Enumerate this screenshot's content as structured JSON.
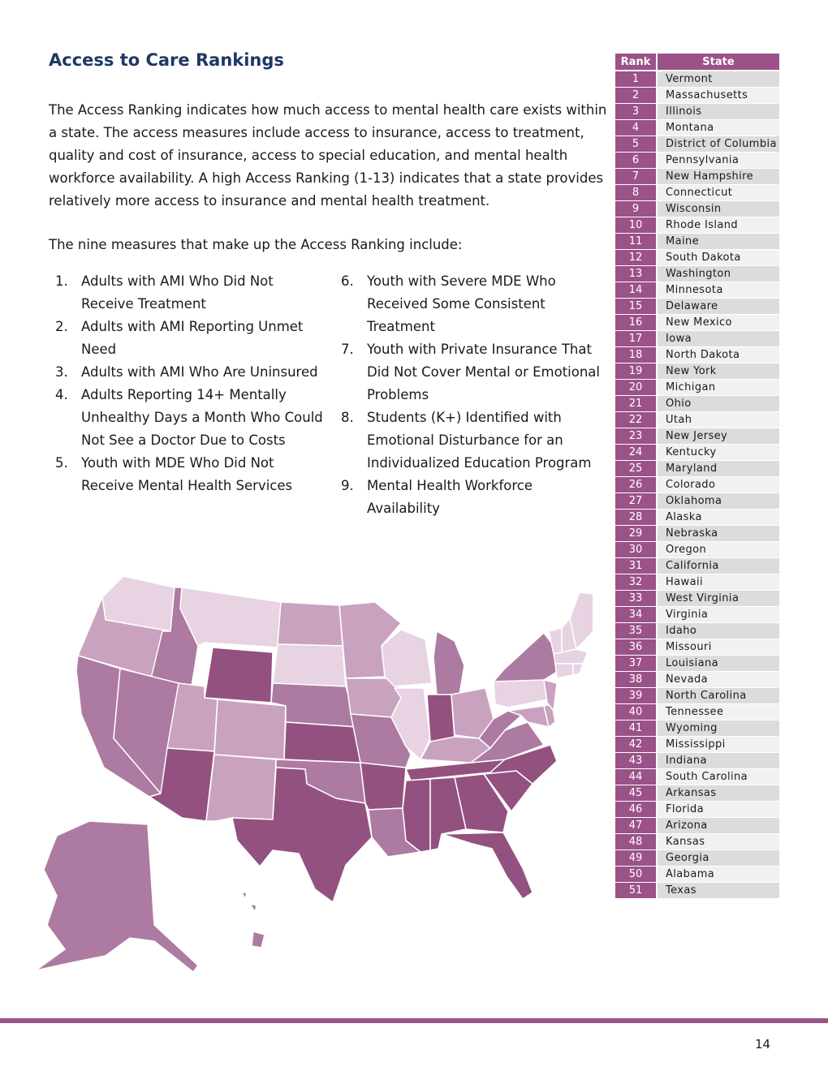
{
  "title": "Access to Care Rankings",
  "intro": "The Access Ranking indicates how much access to mental health care exists within a state. The access measures include access to insurance, access to treatment, quality and cost of insurance, access to special education, and mental health workforce availability. A high Access Ranking (1-13) indicates that a state provides relatively more access to insurance and mental health treatment.",
  "lead": "The nine measures that make up the Access Ranking include:",
  "measures_col1": [
    {
      "num": "1.",
      "text": "Adults with AMI Who Did Not Receive Treatment"
    },
    {
      "num": "2.",
      "text": "Adults with AMI Reporting Unmet Need"
    },
    {
      "num": "3.",
      "text": "Adults with AMI Who Are Uninsured"
    },
    {
      "num": "4.",
      "text": "Adults Reporting 14+ Mentally Unhealthy Days a Month Who Could Not See a Doctor Due to Costs"
    },
    {
      "num": "5.",
      "text": "Youth with MDE Who Did Not Receive Mental Health Services"
    }
  ],
  "measures_col2": [
    {
      "num": "6.",
      "text": "Youth with Severe MDE Who Received Some Consistent Treatment"
    },
    {
      "num": "7.",
      "text": "Youth with Private Insurance That Did Not Cover Mental or Emotional Problems"
    },
    {
      "num": "8.",
      "text": "Students (K+) Identified with Emotional Disturbance for an Individualized Education Program"
    },
    {
      "num": "9.",
      "text": "Mental Health Workforce Availability"
    }
  ],
  "table": {
    "header_rank": "Rank",
    "header_state": "State",
    "rows": [
      {
        "rank": "1",
        "state": "Vermont"
      },
      {
        "rank": "2",
        "state": "Massachusetts"
      },
      {
        "rank": "3",
        "state": "Illinois"
      },
      {
        "rank": "4",
        "state": "Montana"
      },
      {
        "rank": "5",
        "state": "District of Columbia"
      },
      {
        "rank": "6",
        "state": "Pennsylvania"
      },
      {
        "rank": "7",
        "state": "New Hampshire"
      },
      {
        "rank": "8",
        "state": "Connecticut"
      },
      {
        "rank": "9",
        "state": "Wisconsin"
      },
      {
        "rank": "10",
        "state": "Rhode Island"
      },
      {
        "rank": "11",
        "state": "Maine"
      },
      {
        "rank": "12",
        "state": "South Dakota"
      },
      {
        "rank": "13",
        "state": "Washington"
      },
      {
        "rank": "14",
        "state": "Minnesota"
      },
      {
        "rank": "15",
        "state": "Delaware"
      },
      {
        "rank": "16",
        "state": "New Mexico"
      },
      {
        "rank": "17",
        "state": "Iowa"
      },
      {
        "rank": "18",
        "state": "North Dakota"
      },
      {
        "rank": "19",
        "state": "New York"
      },
      {
        "rank": "20",
        "state": "Michigan"
      },
      {
        "rank": "21",
        "state": "Ohio"
      },
      {
        "rank": "22",
        "state": "Utah"
      },
      {
        "rank": "23",
        "state": "New Jersey"
      },
      {
        "rank": "24",
        "state": "Kentucky"
      },
      {
        "rank": "25",
        "state": "Maryland"
      },
      {
        "rank": "26",
        "state": "Colorado"
      },
      {
        "rank": "27",
        "state": "Oklahoma"
      },
      {
        "rank": "28",
        "state": "Alaska"
      },
      {
        "rank": "29",
        "state": "Nebraska"
      },
      {
        "rank": "30",
        "state": "Oregon"
      },
      {
        "rank": "31",
        "state": "California"
      },
      {
        "rank": "32",
        "state": "Hawaii"
      },
      {
        "rank": "33",
        "state": "West Virginia"
      },
      {
        "rank": "34",
        "state": "Virginia"
      },
      {
        "rank": "35",
        "state": "Idaho"
      },
      {
        "rank": "36",
        "state": "Missouri"
      },
      {
        "rank": "37",
        "state": "Louisiana"
      },
      {
        "rank": "38",
        "state": "Nevada"
      },
      {
        "rank": "39",
        "state": "North Carolina"
      },
      {
        "rank": "40",
        "state": "Tennessee"
      },
      {
        "rank": "41",
        "state": "Wyoming"
      },
      {
        "rank": "42",
        "state": "Mississippi"
      },
      {
        "rank": "43",
        "state": "Indiana"
      },
      {
        "rank": "44",
        "state": "South Carolina"
      },
      {
        "rank": "45",
        "state": "Arkansas"
      },
      {
        "rank": "46",
        "state": "Florida"
      },
      {
        "rank": "47",
        "state": "Arizona"
      },
      {
        "rank": "48",
        "state": "Kansas"
      },
      {
        "rank": "49",
        "state": "Georgia"
      },
      {
        "rank": "50",
        "state": "Alabama"
      },
      {
        "rank": "51",
        "state": "Texas"
      }
    ]
  },
  "map_colors": {
    "tier1": "#e8d3e2",
    "tier2": "#c9a2bf",
    "tier3": "#ad7aa1",
    "tier4": "#93517f"
  },
  "page_number": "14"
}
